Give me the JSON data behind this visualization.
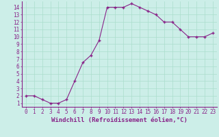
{
  "x": [
    0,
    1,
    2,
    3,
    4,
    5,
    6,
    7,
    8,
    9,
    10,
    11,
    12,
    13,
    14,
    15,
    16,
    17,
    18,
    19,
    20,
    21,
    22,
    23
  ],
  "y": [
    2,
    2,
    1.5,
    1,
    1,
    1.5,
    4,
    6.5,
    7.5,
    9.5,
    14,
    14,
    14,
    14.5,
    14,
    13.5,
    13,
    12,
    12,
    11,
    10,
    10,
    10,
    10.5
  ],
  "line_color": "#882288",
  "marker_color": "#882288",
  "bg_color": "#cceee8",
  "grid_color": "#aaddcc",
  "xlabel": "Windchill (Refroidissement éolien,°C)",
  "xlim": [
    -0.5,
    23.5
  ],
  "ylim": [
    0.5,
    14.8
  ],
  "xticks": [
    0,
    1,
    2,
    3,
    4,
    5,
    6,
    7,
    8,
    9,
    10,
    11,
    12,
    13,
    14,
    15,
    16,
    17,
    18,
    19,
    20,
    21,
    22,
    23
  ],
  "yticks": [
    1,
    2,
    3,
    4,
    5,
    6,
    7,
    8,
    9,
    10,
    11,
    12,
    13,
    14
  ],
  "tick_color": "#882288",
  "axis_color": "#882288",
  "xlabel_fontsize": 6.5,
  "tick_fontsize": 5.5
}
